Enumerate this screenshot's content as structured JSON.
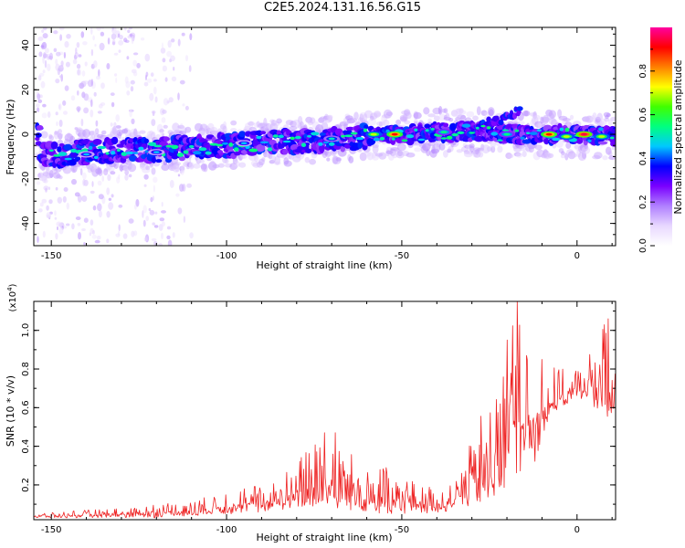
{
  "figure": {
    "title": "C2E5.2024.131.16.56.G15"
  },
  "chart_data": [
    {
      "type": "heatmap",
      "panel": "top",
      "xlabel": "Height of straight line (km)",
      "ylabel": "Frequency (Hz)",
      "xlim": [
        -155,
        11
      ],
      "ylim": [
        -50,
        48
      ],
      "x_ticks": [
        -150,
        -100,
        -50,
        0
      ],
      "x_tick_labels": [
        "-150",
        "-100",
        "-50",
        "0"
      ],
      "y_ticks": [
        -40,
        -20,
        0,
        20,
        40
      ],
      "y_tick_labels": [
        "-40",
        "-20",
        "0",
        "20",
        "40"
      ],
      "colorbar": {
        "label": "Normalized spectral amplitude",
        "range": [
          0,
          1
        ],
        "ticks": [
          0.0,
          0.2,
          0.4,
          0.6,
          0.8
        ],
        "tick_labels": [
          "0.0",
          "0.2",
          "0.4",
          "0.6",
          "0.8"
        ],
        "colormap": [
          "#ffffff",
          "#e8d8ff",
          "#b080ff",
          "#7a00ff",
          "#0000ff",
          "#00c8ff",
          "#00ff80",
          "#40ff00",
          "#ffff00",
          "#ff8000",
          "#ff0000",
          "#ff00a0"
        ]
      },
      "ridge": {
        "description_points": [
          {
            "x": -153,
            "y": -10
          },
          {
            "x": -140,
            "y": -8
          },
          {
            "x": -120,
            "y": -7
          },
          {
            "x": -100,
            "y": -5
          },
          {
            "x": -80,
            "y": -3
          },
          {
            "x": -60,
            "y": -1
          },
          {
            "x": -50,
            "y": 0
          },
          {
            "x": -40,
            "y": 1
          },
          {
            "x": -30,
            "y": 1
          },
          {
            "x": -20,
            "y": 0
          },
          {
            "x": -10,
            "y": 0
          },
          {
            "x": 0,
            "y": 0
          },
          {
            "x": 10,
            "y": -1
          }
        ],
        "branch": [
          {
            "x": -30,
            "y": 4
          },
          {
            "x": -22,
            "y": 6
          },
          {
            "x": -16,
            "y": 11
          }
        ],
        "hotspots": [
          {
            "x": -52,
            "y": 0,
            "v": 0.9
          },
          {
            "x": -8,
            "y": 0,
            "v": 0.9
          },
          {
            "x": 2,
            "y": 0,
            "v": 0.95
          },
          {
            "x": -58,
            "y": 0,
            "v": 0.7
          },
          {
            "x": -3,
            "y": -1,
            "v": 0.7
          },
          {
            "x": 7,
            "y": -1,
            "v": 0.7
          },
          {
            "x": -38,
            "y": 1,
            "v": 0.55
          },
          {
            "x": -20,
            "y": 0,
            "v": 0.55
          },
          {
            "x": -70,
            "y": -2,
            "v": 0.5
          },
          {
            "x": -95,
            "y": -4,
            "v": 0.45
          },
          {
            "x": -120,
            "y": -8,
            "v": 0.45
          },
          {
            "x": -140,
            "y": -9,
            "v": 0.45
          }
        ],
        "noise_columns_x": [
          -152,
          -147,
          -142,
          -137,
          -132,
          -127,
          -122,
          -117,
          -112
        ]
      }
    },
    {
      "type": "line",
      "panel": "bottom",
      "xlabel": "Height of straight line (km)",
      "ylabel": "SNR (10 * v/v)",
      "y_multiplier_label": "(x10",
      "y_multiplier_exp": "4",
      "y_multiplier_close": ")",
      "xlim": [
        -155,
        11
      ],
      "ylim": [
        0.02,
        1.15
      ],
      "x_ticks": [
        -150,
        -100,
        -50,
        0
      ],
      "x_tick_labels": [
        "-150",
        "-100",
        "-50",
        "0"
      ],
      "y_ticks": [
        0.2,
        0.4,
        0.6,
        0.8,
        1.0
      ],
      "y_tick_labels": [
        "0.2",
        "0.4",
        "0.6",
        "0.8",
        "1.0"
      ],
      "color": "#ee2222",
      "series": [
        {
          "envelope_x": [
            -155,
            -140,
            -130,
            -120,
            -110,
            -100,
            -95,
            -90,
            -85,
            -80,
            -75,
            -70,
            -65,
            -60,
            -55,
            -50,
            -45,
            -40,
            -35,
            -30,
            -28,
            -25,
            -22,
            -20,
            -17,
            -15,
            -12,
            -10,
            -8,
            -5,
            0,
            3,
            5,
            8,
            10,
            11
          ],
          "envelope_low": [
            0.03,
            0.03,
            0.03,
            0.03,
            0.04,
            0.05,
            0.05,
            0.06,
            0.07,
            0.08,
            0.08,
            0.07,
            0.07,
            0.06,
            0.05,
            0.05,
            0.05,
            0.05,
            0.06,
            0.08,
            0.1,
            0.12,
            0.15,
            0.18,
            0.25,
            0.25,
            0.3,
            0.45,
            0.55,
            0.6,
            0.62,
            0.65,
            0.6,
            0.55,
            0.5,
            0.6
          ],
          "envelope_high": [
            0.05,
            0.07,
            0.08,
            0.1,
            0.12,
            0.16,
            0.2,
            0.2,
            0.22,
            0.35,
            0.45,
            0.47,
            0.38,
            0.35,
            0.3,
            0.25,
            0.2,
            0.18,
            0.25,
            0.45,
            0.55,
            0.7,
            0.8,
            1.0,
            1.15,
            1.0,
            0.8,
            0.85,
            0.82,
            0.8,
            0.8,
            0.85,
            0.95,
            1.05,
            0.9,
            0.85
          ],
          "peaks": [
            {
              "x": -17,
              "y": 1.15
            },
            {
              "x": -20,
              "y": 0.95
            },
            {
              "x": 9,
              "y": 1.06
            },
            {
              "x": -72,
              "y": 0.47
            },
            {
              "x": -69,
              "y": 0.47
            },
            {
              "x": -10,
              "y": 0.85
            }
          ]
        }
      ]
    }
  ]
}
